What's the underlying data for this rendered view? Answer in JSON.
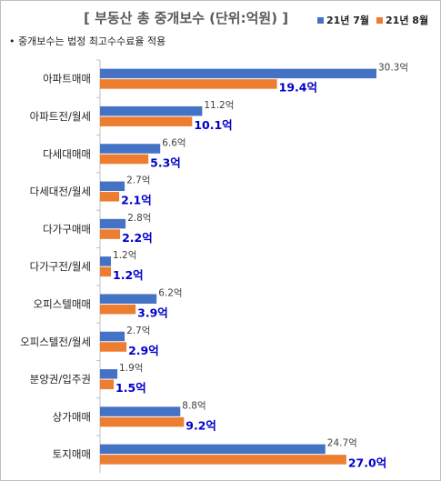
{
  "chart_data": {
    "type": "bar",
    "orientation": "horizontal",
    "title": "[ 부동산 총 중개보수 (단위:억원) ]",
    "note": "• 중개보수는 법정 최고수수료율 적용",
    "unit": "억",
    "xlim": [
      0,
      31
    ],
    "grid": false,
    "legend_position": "top-right",
    "categories": [
      "아파트매매",
      "아파트전/월세",
      "다세대매매",
      "다세대전/월세",
      "다가구매매",
      "다가구전/월세",
      "오피스텔매매",
      "오피스텔전/월세",
      "분양권/입주권",
      "상가매매",
      "토지매매"
    ],
    "series": [
      {
        "name": "21년 7월",
        "color": "#4472c4",
        "values": [
          30.3,
          11.2,
          6.6,
          2.7,
          2.8,
          1.2,
          6.2,
          2.7,
          1.9,
          8.8,
          24.7
        ]
      },
      {
        "name": "21년 8월",
        "color": "#ed7d31",
        "values": [
          19.4,
          10.1,
          5.3,
          2.1,
          2.2,
          1.2,
          3.9,
          2.9,
          1.5,
          9.2,
          27.0
        ]
      }
    ],
    "label_colors": {
      "july": "#404040",
      "august": "#0000cc"
    }
  }
}
